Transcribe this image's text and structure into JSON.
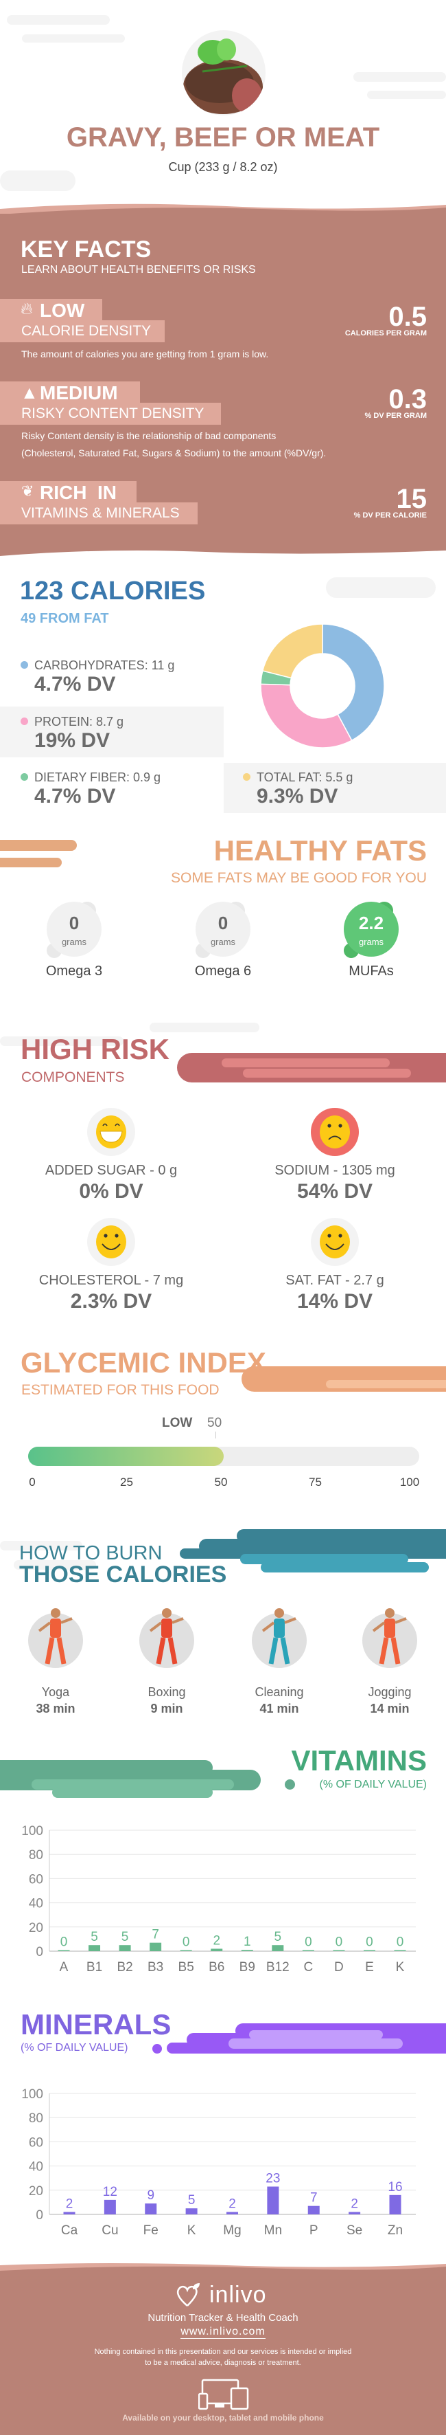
{
  "header": {
    "title": "GRAVY, BEEF OR MEAT",
    "serving": "Cup (233 g / 8.2 oz)",
    "image_icon": "steak-photo"
  },
  "key_facts": {
    "title": "KEY FACTS",
    "subtitle": "LEARN ABOUT HEALTH BENEFITS OR RISKS",
    "items": [
      {
        "icon": "flame-icon",
        "level": "LOW",
        "name": "CALORIE DENSITY",
        "value": "0.5",
        "unit": "CALORIES PER GRAM",
        "desc": [
          "The amount of calories you are getting from 1 gram is low."
        ]
      },
      {
        "icon": "warning-icon",
        "level": "MEDIUM",
        "name": "RISKY CONTENT DENSITY",
        "value": "0.3",
        "unit": "% DV PER GRAM",
        "desc": [
          "Risky Content density is the relationship of bad components",
          "(Cholesterol, Saturated Fat, Sugars & Sodium) to the amount (%DV/gr)."
        ]
      },
      {
        "icon": "leaf-icon",
        "level": "RICH  IN",
        "name": "VITAMINS & MINERALS",
        "value": "15",
        "unit": "% DV PER CALORIE",
        "desc": []
      }
    ],
    "colors": {
      "band": "#b98276",
      "box": "#dfa89b"
    }
  },
  "calories": {
    "title": "123 CALORIES",
    "subtitle": "49 FROM FAT",
    "macros": [
      {
        "label": "CARBOHYDRATES: 11 g",
        "dv": "4.7% DV",
        "grams": 11,
        "color": "#8dbbe2"
      },
      {
        "label": "PROTEIN: 8.7 g",
        "dv": "19% DV",
        "grams": 8.7,
        "color": "#f9a5c8"
      },
      {
        "label": "DIETARY FIBER: 0.9 g",
        "dv": "4.7% DV",
        "grams": 0.9,
        "color": "#7dcba0"
      },
      {
        "label": "TOTAL FAT: 5.5 g",
        "dv": "9.3% DV",
        "grams": 5.5,
        "color": "#f8d583"
      }
    ]
  },
  "healthy_fats": {
    "title": "HEALTHY FATS",
    "subtitle": "SOME FATS MAY BE GOOD FOR YOU",
    "items": [
      {
        "value": "0",
        "unit": "grams",
        "name": "Omega 3",
        "highlight": false
      },
      {
        "value": "0",
        "unit": "grams",
        "name": "Omega 6",
        "highlight": false
      },
      {
        "value": "2.2",
        "unit": "grams",
        "name": "MUFAs",
        "highlight": true
      }
    ]
  },
  "high_risk": {
    "title": "HIGH RISK",
    "subtitle": "COMPONENTS",
    "items": [
      {
        "label": "ADDED SUGAR - 0 g",
        "dv": "0% DV",
        "face": "grin-face-icon",
        "bad": false
      },
      {
        "label": "SODIUM - 1305 mg",
        "dv": "54% DV",
        "face": "sad-face-icon",
        "bad": true
      },
      {
        "label": "CHOLESTEROL - 7 mg",
        "dv": "2.3% DV",
        "face": "smile-face-icon",
        "bad": false
      },
      {
        "label": "SAT. FAT - 2.7 g",
        "dv": "14% DV",
        "face": "smile-face-icon",
        "bad": false
      }
    ]
  },
  "glycemic": {
    "title": "GLYCEMIC INDEX",
    "subtitle": "ESTIMATED FOR THIS FOOD",
    "level": "LOW",
    "value": "50",
    "value_num": 50,
    "ticks": [
      "0",
      "25",
      "50",
      "75",
      "100"
    ]
  },
  "burn": {
    "title_top": "HOW TO BURN",
    "title_bottom": "THOSE CALORIES",
    "activities": [
      {
        "name": "Yoga",
        "time": "38 min",
        "icon": "yoga-icon"
      },
      {
        "name": "Boxing",
        "time": "9 min",
        "icon": "boxing-icon"
      },
      {
        "name": "Cleaning",
        "time": "41 min",
        "icon": "cleaning-icon"
      },
      {
        "name": "Jogging",
        "time": "14 min",
        "icon": "jogging-icon"
      }
    ]
  },
  "vitamins": {
    "title": "VITAMINS",
    "subtitle": "(% OF DAILY VALUE)"
  },
  "minerals": {
    "title": "MINERALS",
    "subtitle": "(% OF DAILY VALUE)"
  },
  "chart_data": [
    {
      "type": "bar",
      "categories": [
        "A",
        "B1",
        "B2",
        "B3",
        "B5",
        "B6",
        "B9",
        "B12",
        "C",
        "D",
        "E",
        "K"
      ],
      "values": [
        0,
        5,
        5,
        7,
        0,
        2,
        1,
        5,
        0,
        0,
        0,
        0
      ],
      "ylim": [
        0,
        100
      ],
      "yticks": [
        "0",
        "20",
        "40",
        "60",
        "80",
        "100"
      ],
      "grid": true,
      "color": "#66b88c"
    },
    {
      "type": "bar",
      "categories": [
        "Ca",
        "Cu",
        "Fe",
        "K",
        "Mg",
        "Mn",
        "P",
        "Se",
        "Zn"
      ],
      "values": [
        2,
        12,
        9,
        5,
        2,
        23,
        7,
        2,
        16
      ],
      "ylim": [
        0,
        100
      ],
      "yticks": [
        "0",
        "20",
        "40",
        "60",
        "80",
        "100"
      ],
      "grid": true,
      "color": "#7f6ae3"
    }
  ],
  "footer": {
    "brand": "inlivo",
    "tagline": "Nutrition Tracker & Health Coach",
    "url": "www.inlivo.com",
    "disclaimer": [
      "Nothing contained in this presentation and our services is intended or implied",
      "to be a medical advice, diagnosis or treatment."
    ],
    "available": "Available on your desktop, tablet and mobile phone"
  }
}
